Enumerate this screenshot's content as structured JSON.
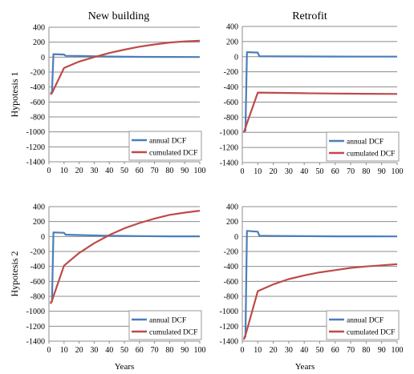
{
  "figure": {
    "column_titles": [
      "New building",
      "Retrofit"
    ],
    "row_labels": [
      "Hypotesis 1",
      "Hypotesis 2"
    ],
    "xlabel": "Years"
  },
  "chart_data": [
    {
      "type": "line",
      "column": "New building",
      "row": "Hypotesis 1",
      "xlim": [
        0,
        100
      ],
      "ylim": [
        -1400,
        400
      ],
      "xticks": [
        0,
        10,
        20,
        30,
        40,
        50,
        60,
        70,
        80,
        90,
        100
      ],
      "yticks": [
        400,
        200,
        0,
        -200,
        -400,
        -600,
        -800,
        -1000,
        -1200,
        -1400
      ],
      "grid": true,
      "legend_position": "bottom-right",
      "series": [
        {
          "name": "annual DCF",
          "color": "#4a7ebb",
          "x": [
            1,
            2,
            3,
            10,
            11,
            20,
            40,
            60,
            80,
            100
          ],
          "y": [
            -480,
            -470,
            40,
            35,
            18,
            15,
            8,
            4,
            2,
            1
          ]
        },
        {
          "name": "cumulated DCF",
          "color": "#be4b48",
          "x": [
            1,
            2,
            3,
            10,
            20,
            30,
            40,
            50,
            60,
            70,
            80,
            90,
            100
          ],
          "y": [
            -500,
            -480,
            -440,
            -145,
            -60,
            0,
            55,
            100,
            140,
            170,
            195,
            210,
            220
          ]
        }
      ]
    },
    {
      "type": "line",
      "column": "Retrofit",
      "row": "Hypotesis 1",
      "xlim": [
        0,
        100
      ],
      "ylim": [
        -1400,
        400
      ],
      "xticks": [
        0,
        10,
        20,
        30,
        40,
        50,
        60,
        70,
        80,
        90,
        100
      ],
      "yticks": [
        400,
        200,
        0,
        -200,
        -400,
        -600,
        -800,
        -1000,
        -1200,
        -1400
      ],
      "grid": true,
      "legend_position": "bottom-right",
      "series": [
        {
          "name": "annual DCF",
          "color": "#4a7ebb",
          "x": [
            1,
            2,
            3,
            10,
            11,
            20,
            40,
            60,
            80,
            100
          ],
          "y": [
            -990,
            -980,
            60,
            55,
            5,
            4,
            3,
            2,
            1,
            1
          ]
        },
        {
          "name": "cumulated DCF",
          "color": "#be4b48",
          "x": [
            1,
            2,
            3,
            10,
            20,
            40,
            60,
            80,
            100
          ],
          "y": [
            -1000,
            -940,
            -880,
            -475,
            -478,
            -483,
            -487,
            -490,
            -493
          ]
        }
      ]
    },
    {
      "type": "line",
      "column": "New building",
      "row": "Hypotesis 2",
      "xlim": [
        0,
        100
      ],
      "ylim": [
        -1400,
        400
      ],
      "xticks": [
        0,
        10,
        20,
        30,
        40,
        50,
        60,
        70,
        80,
        90,
        100
      ],
      "yticks": [
        400,
        200,
        0,
        -200,
        -400,
        -600,
        -800,
        -1000,
        -1200,
        -1400
      ],
      "grid": true,
      "legend_position": "bottom-right",
      "series": [
        {
          "name": "annual DCF",
          "color": "#4a7ebb",
          "x": [
            1,
            2,
            3,
            10,
            11,
            20,
            40,
            60,
            80,
            100
          ],
          "y": [
            -880,
            -870,
            55,
            50,
            25,
            20,
            10,
            6,
            3,
            2
          ]
        },
        {
          "name": "cumulated DCF",
          "color": "#be4b48",
          "x": [
            1,
            2,
            3,
            10,
            20,
            30,
            40,
            50,
            60,
            70,
            80,
            90,
            100
          ],
          "y": [
            -900,
            -860,
            -800,
            -390,
            -220,
            -90,
            20,
            110,
            180,
            240,
            290,
            320,
            345
          ]
        }
      ]
    },
    {
      "type": "line",
      "column": "Retrofit",
      "row": "Hypotesis 2",
      "xlim": [
        0,
        100
      ],
      "ylim": [
        -1400,
        400
      ],
      "xticks": [
        0,
        10,
        20,
        30,
        40,
        50,
        60,
        70,
        80,
        90,
        100
      ],
      "yticks": [
        400,
        200,
        0,
        -200,
        -400,
        -600,
        -800,
        -1000,
        -1200,
        -1400
      ],
      "grid": true,
      "legend_position": "bottom-right",
      "series": [
        {
          "name": "annual DCF",
          "color": "#4a7ebb",
          "x": [
            1,
            2,
            3,
            10,
            11,
            20,
            40,
            60,
            80,
            100
          ],
          "y": [
            -1350,
            -1340,
            75,
            65,
            10,
            8,
            5,
            3,
            2,
            1
          ]
        },
        {
          "name": "cumulated DCF",
          "color": "#be4b48",
          "x": [
            1,
            2,
            3,
            10,
            20,
            30,
            40,
            50,
            60,
            70,
            80,
            90,
            100
          ],
          "y": [
            -1380,
            -1320,
            -1250,
            -730,
            -640,
            -570,
            -520,
            -480,
            -450,
            -420,
            -400,
            -385,
            -370
          ]
        }
      ]
    }
  ]
}
